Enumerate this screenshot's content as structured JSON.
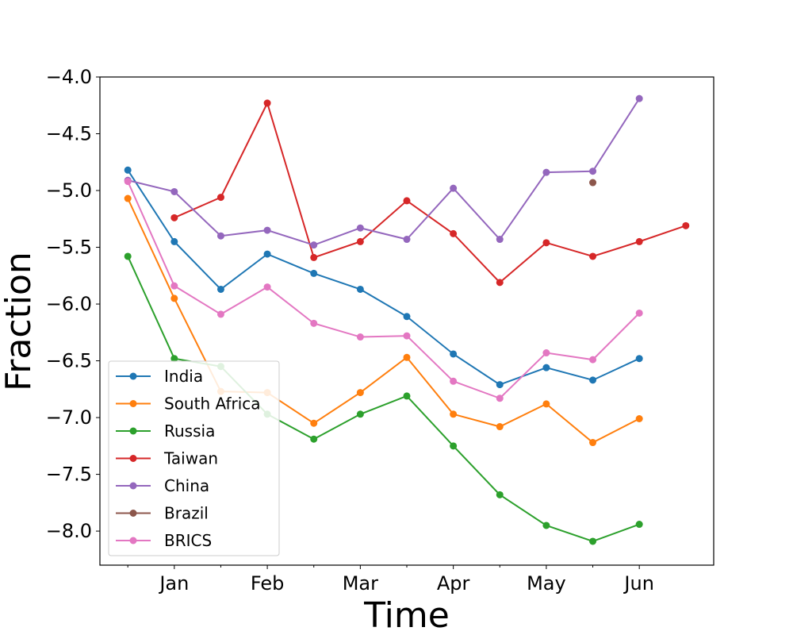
{
  "chart_data": {
    "type": "line",
    "title": "",
    "xlabel": "Time",
    "ylabel": "Fraction",
    "x_positions": [
      0,
      1,
      2,
      3,
      4,
      5,
      6,
      7,
      8,
      9,
      10,
      11,
      12
    ],
    "major_ticks": [
      {
        "x": 1,
        "label": "Jan"
      },
      {
        "x": 3,
        "label": "Feb"
      },
      {
        "x": 5,
        "label": "Mar"
      },
      {
        "x": 7,
        "label": "Apr"
      },
      {
        "x": 9,
        "label": "May"
      },
      {
        "x": 11,
        "label": "Jun"
      }
    ],
    "minor_ticks": [
      0,
      2,
      4,
      6,
      8,
      10
    ],
    "xlim": [
      -0.6,
      12.6
    ],
    "ylim": [
      -8.3,
      -4.0
    ],
    "yticks": [
      -8.0,
      -7.5,
      -7.0,
      -6.5,
      -6.0,
      -5.5,
      -5.0,
      -4.5,
      -4.0
    ],
    "ytick_labels": [
      "−8.0",
      "−7.5",
      "−7.0",
      "−6.5",
      "−6.0",
      "−5.5",
      "−5.0",
      "−4.5",
      "−4.0"
    ],
    "grid": false,
    "legend_position": "lower-left",
    "series": [
      {
        "name": "India",
        "color": "#1f77b4",
        "values": [
          -4.82,
          -5.45,
          -5.87,
          -5.56,
          -5.73,
          -5.87,
          -6.11,
          -6.44,
          -6.71,
          -6.56,
          -6.67,
          -6.48,
          null
        ]
      },
      {
        "name": "South Africa",
        "color": "#ff7f0e",
        "values": [
          -5.07,
          -5.95,
          -6.77,
          -6.78,
          -7.05,
          -6.78,
          -6.47,
          -6.97,
          -7.08,
          -6.88,
          -7.22,
          -7.01,
          null
        ]
      },
      {
        "name": "Russia",
        "color": "#2ca02c",
        "values": [
          -5.58,
          -6.48,
          -6.55,
          -6.97,
          -7.19,
          -6.97,
          -6.81,
          -7.25,
          -7.68,
          -7.95,
          -8.09,
          -7.94,
          null
        ]
      },
      {
        "name": "Taiwan",
        "color": "#d62728",
        "values": [
          null,
          -5.24,
          -5.06,
          -4.23,
          -5.59,
          -5.45,
          -5.09,
          -5.38,
          -5.81,
          -5.46,
          -5.58,
          -5.45,
          -5.31
        ]
      },
      {
        "name": "China",
        "color": "#9467bd",
        "values": [
          -4.91,
          -5.01,
          -5.4,
          -5.35,
          -5.48,
          -5.33,
          -5.43,
          -4.98,
          -5.43,
          -4.84,
          -4.83,
          -4.19,
          null
        ]
      },
      {
        "name": "Brazil",
        "color": "#8c564b",
        "values": [
          null,
          null,
          null,
          null,
          null,
          null,
          null,
          null,
          null,
          null,
          -4.93,
          null,
          null
        ]
      },
      {
        "name": "BRICS",
        "color": "#e377c2",
        "values": [
          -4.92,
          -5.84,
          -6.09,
          -5.85,
          -6.17,
          -6.29,
          -6.28,
          -6.68,
          -6.83,
          -6.43,
          -6.49,
          -6.08,
          null
        ]
      }
    ]
  }
}
